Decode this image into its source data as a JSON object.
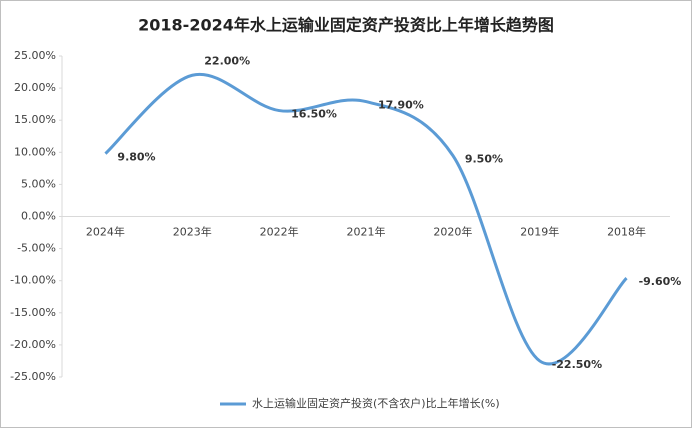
{
  "chart_data": {
    "type": "line",
    "title": "2018-2024年水上运输业固定资产投资比上年增长趋势图",
    "categories": [
      "2024年",
      "2023年",
      "2022年",
      "2021年",
      "2020年",
      "2019年",
      "2018年"
    ],
    "series": [
      {
        "name": "水上运输业固定资产投资(不含农户)比上年增长(%)",
        "color": "#5b9bd5",
        "values": [
          9.8,
          22,
          16.5,
          17.9,
          9.5,
          -22.5,
          -9.6
        ],
        "value_labels": [
          "9.80%",
          "22.00%",
          "16.50%",
          "17.90%",
          "9.50%",
          "-22.50%",
          "-9.60%"
        ]
      }
    ],
    "ylim": [
      -25,
      25
    ],
    "yticks": [
      {
        "value": -25,
        "label": "-25.00%"
      },
      {
        "value": -20,
        "label": "-20.00%"
      },
      {
        "value": -15,
        "label": "-15.00%"
      },
      {
        "value": -10,
        "label": "-10.00%"
      },
      {
        "value": -5,
        "label": "-5.00%"
      },
      {
        "value": 0,
        "label": "0.00%"
      },
      {
        "value": 5,
        "label": "5.00%"
      },
      {
        "value": 10,
        "label": "10.00%"
      },
      {
        "value": 15,
        "label": "15.00%"
      },
      {
        "value": 20,
        "label": "20.00%"
      },
      {
        "value": 25,
        "label": "25.00%"
      }
    ],
    "grid": false,
    "legend": "bottom"
  }
}
